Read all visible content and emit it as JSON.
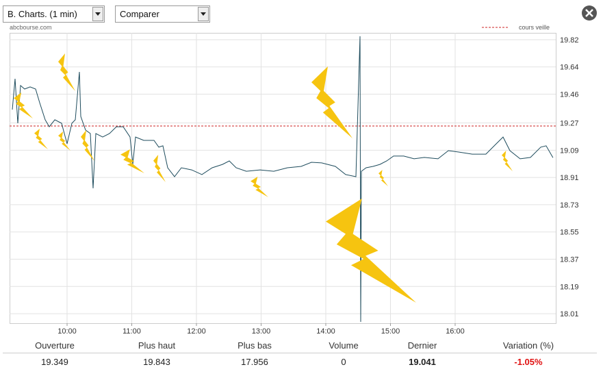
{
  "ui": {
    "period_select": "B. Charts. (1 min)",
    "compare_select": "Comparer",
    "source": "abcbourse.com"
  },
  "chart_data": {
    "type": "line",
    "x": [
      9.153,
      9.196,
      9.238,
      9.28,
      9.344,
      9.429,
      9.513,
      9.577,
      9.661,
      9.725,
      9.81,
      9.915,
      10.0,
      10.074,
      10.127,
      10.19,
      10.212,
      10.286,
      10.36,
      10.402,
      10.444,
      10.55,
      10.656,
      10.762,
      10.868,
      10.974,
      11.016,
      11.058,
      11.185,
      11.344,
      11.418,
      11.481,
      11.556,
      11.661,
      11.767,
      11.926,
      12.085,
      12.243,
      12.402,
      12.508,
      12.614,
      12.772,
      12.984,
      13.196,
      13.407,
      13.619,
      13.778,
      13.937,
      14.148,
      14.307,
      14.466,
      14.529,
      14.54,
      14.55,
      14.624,
      14.73,
      14.836,
      14.942,
      15.048,
      15.206,
      15.365,
      15.524,
      15.735,
      15.894,
      16.053,
      16.265,
      16.476,
      16.635,
      16.741,
      16.847,
      17.005,
      17.164,
      17.323,
      17.407,
      17.513
    ],
    "values": [
      19.358,
      19.562,
      19.268,
      19.517,
      19.494,
      19.508,
      19.494,
      19.403,
      19.291,
      19.245,
      19.291,
      19.268,
      19.132,
      19.268,
      19.291,
      19.607,
      19.313,
      19.223,
      19.2,
      18.838,
      19.2,
      19.177,
      19.2,
      19.245,
      19.245,
      19.177,
      18.996,
      19.177,
      19.155,
      19.155,
      19.11,
      19.119,
      18.974,
      18.915,
      18.974,
      18.96,
      18.929,
      18.974,
      18.996,
      19.019,
      18.974,
      18.951,
      18.96,
      18.951,
      18.974,
      18.983,
      19.01,
      19.006,
      18.983,
      18.929,
      18.915,
      19.843,
      17.956,
      18.951,
      18.974,
      18.983,
      18.996,
      19.019,
      19.051,
      19.051,
      19.033,
      19.042,
      19.033,
      19.087,
      19.078,
      19.064,
      19.064,
      19.132,
      19.177,
      19.087,
      19.033,
      19.042,
      19.11,
      19.119,
      19.041
    ],
    "color": "#1d4b5c",
    "reference_line": {
      "label": "cours veille",
      "value": 19.25,
      "color": "#cc2222"
    },
    "xlim": [
      9.111,
      17.556
    ],
    "xticks": [
      {
        "value": 10,
        "label": "10:00"
      },
      {
        "value": 11,
        "label": "11:00"
      },
      {
        "value": 12,
        "label": "12:00"
      },
      {
        "value": 13,
        "label": "13:00"
      },
      {
        "value": 14,
        "label": "14:00"
      },
      {
        "value": 15,
        "label": "15:00"
      },
      {
        "value": 16,
        "label": "16:00"
      }
    ],
    "ylim": [
      17.947,
      19.865
    ],
    "yticks": [
      18.01,
      18.19,
      18.37,
      18.55,
      18.73,
      18.91,
      19.09,
      19.27,
      19.46,
      19.64,
      19.82
    ],
    "grid": true
  },
  "stats": {
    "headers": [
      "Ouverture",
      "Plus haut",
      "Plus bas",
      "Volume",
      "Dernier",
      "Variation (%)"
    ],
    "values": [
      "19.349",
      "19.843",
      "17.956",
      "0",
      "19.041",
      "-1.05%"
    ]
  }
}
